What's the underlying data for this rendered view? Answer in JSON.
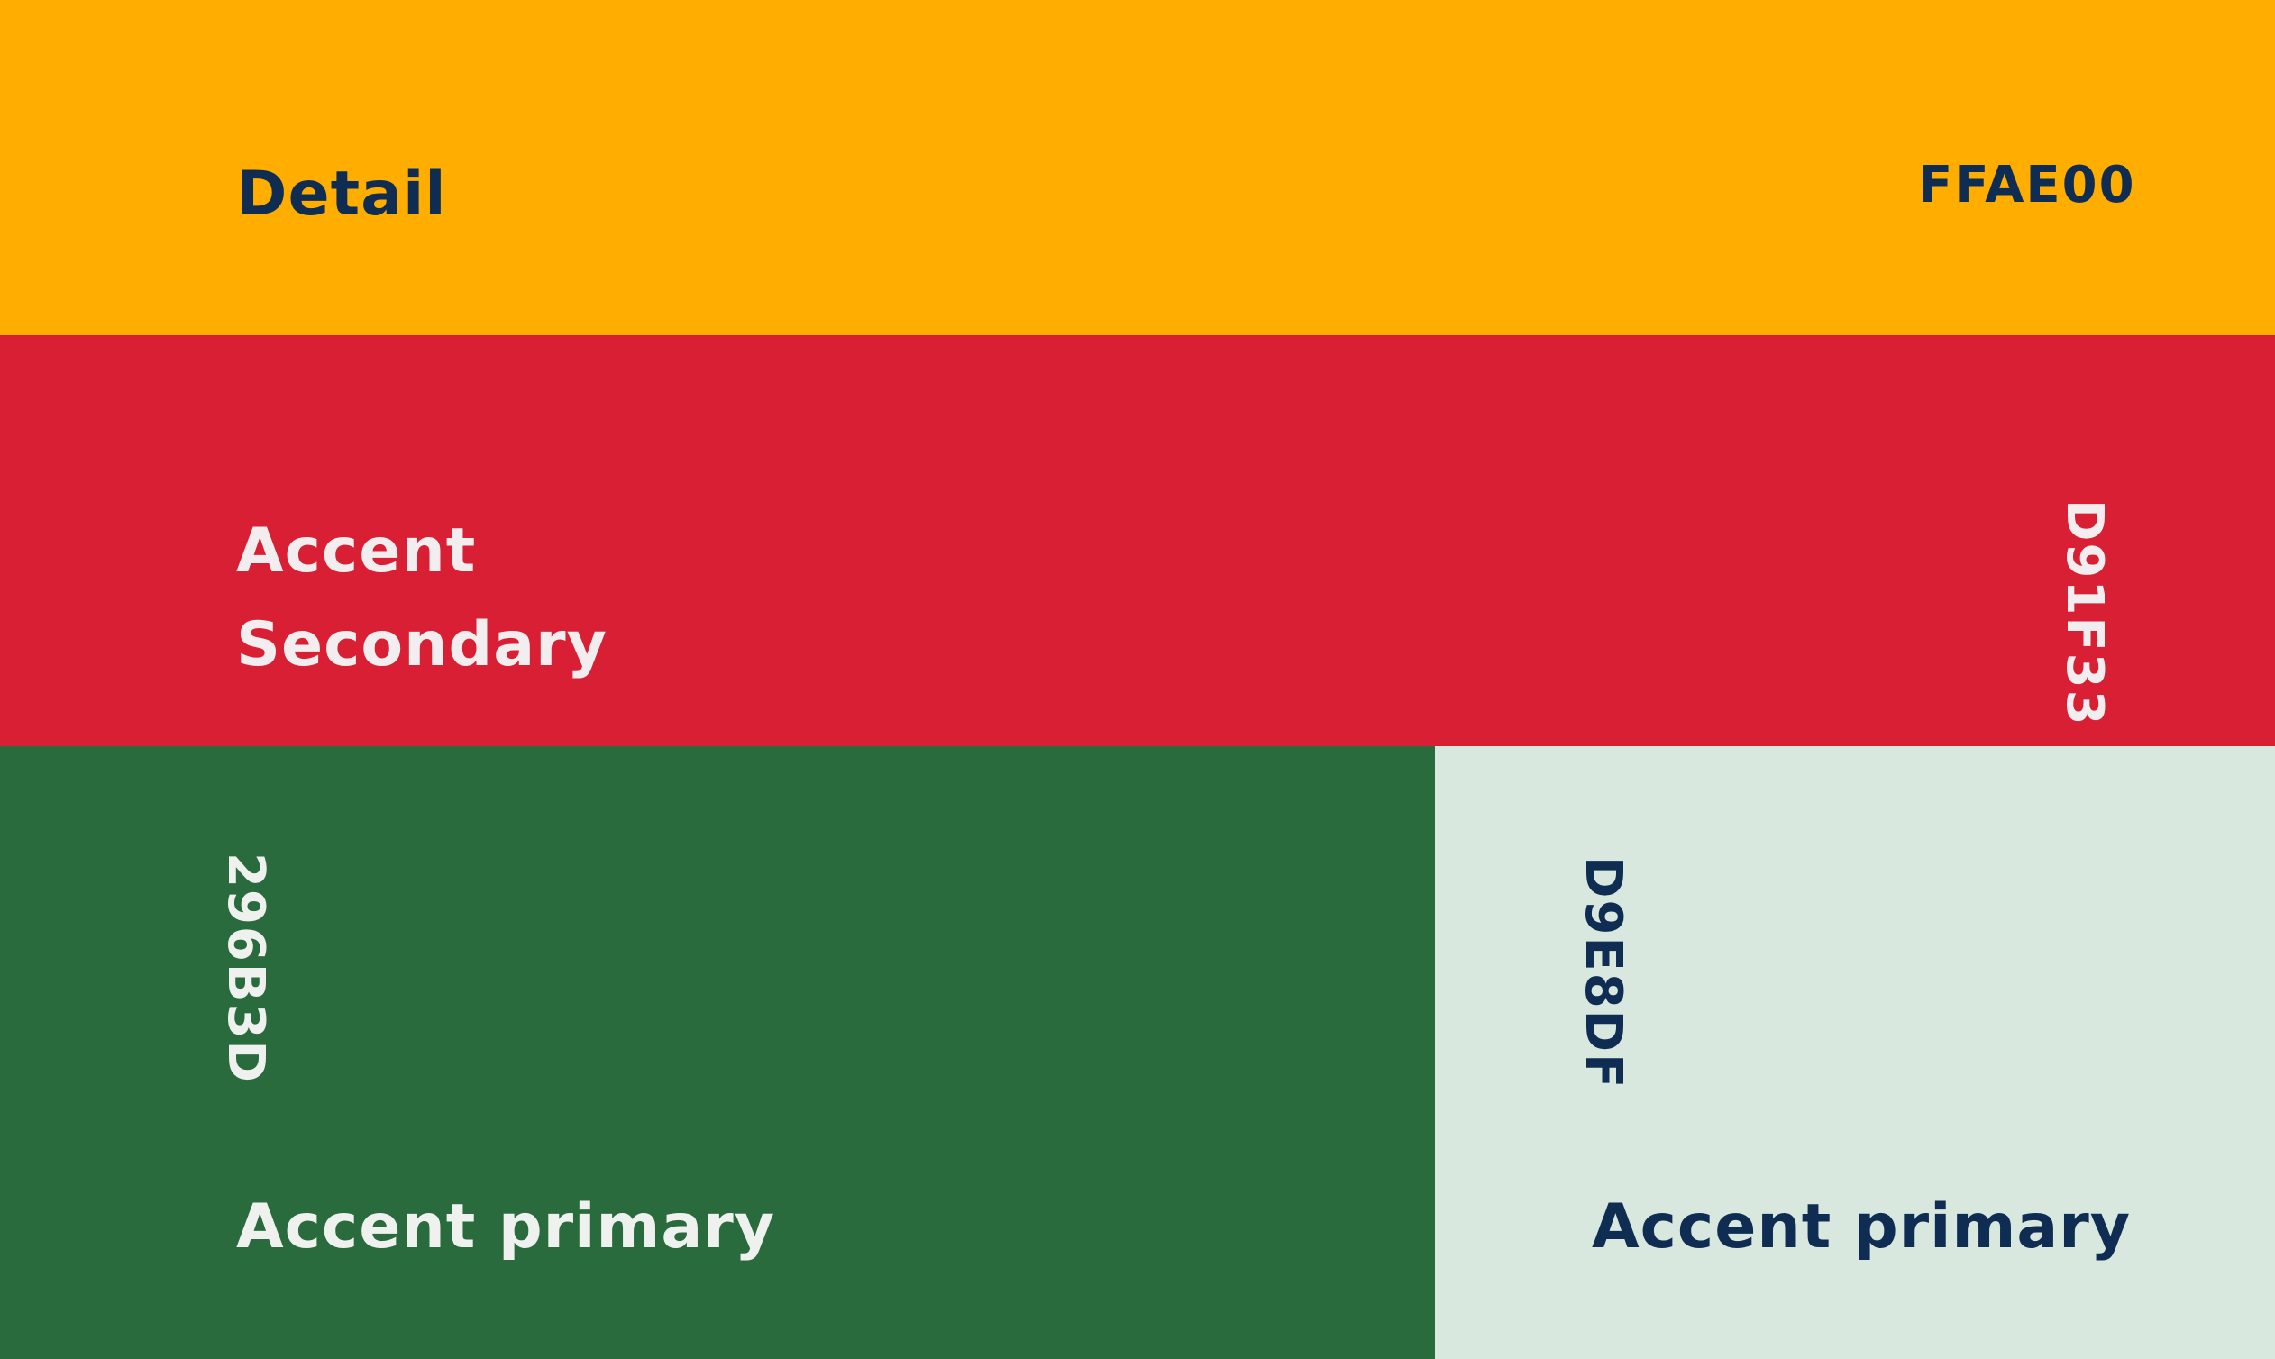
{
  "swatches": {
    "detail": {
      "name": "Detail",
      "code": "FFAE00",
      "color": "#FFAE00",
      "text_color": "#0F2D52"
    },
    "secondary": {
      "name_line1": "Accent",
      "name_line2": "Secondary",
      "code": "D91F33",
      "color": "#D91F33",
      "text_color": "#F2EEF0"
    },
    "primary": {
      "name": "Accent primary",
      "code": "296B3D",
      "color": "#296B3D",
      "text_color": "#EEF1EE"
    },
    "primary_light": {
      "name": "Accent primary",
      "code": "D9E8DF",
      "color": "#D9E8DF",
      "text_color": "#0F2D52"
    }
  }
}
